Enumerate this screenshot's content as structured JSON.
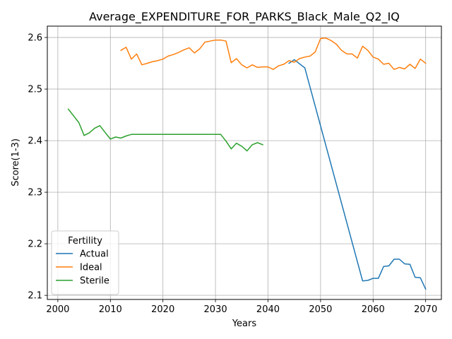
{
  "chart_data": {
    "type": "line",
    "title": "Average_EXPENDITURE_FOR_PARKS_Black_Male_Q2_IQ",
    "xlabel": "Years",
    "ylabel": "Score(1-3)",
    "xlim": [
      1998,
      2073
    ],
    "ylim": [
      2.092,
      2.622
    ],
    "xticks": [
      2000,
      2010,
      2020,
      2030,
      2040,
      2050,
      2060,
      2070
    ],
    "yticks": [
      2.1,
      2.2,
      2.3,
      2.4,
      2.5,
      2.6
    ],
    "xtick_labels": [
      "2000",
      "2010",
      "2020",
      "2030",
      "2040",
      "2050",
      "2060",
      "2070"
    ],
    "ytick_labels": [
      "2.1",
      "2.2",
      "2.3",
      "2.4",
      "2.5",
      "2.6"
    ],
    "grid": true,
    "legend": {
      "title": "Fertility",
      "placement": "lower-left"
    },
    "series": [
      {
        "name": "Actual",
        "color": "#1f77b4",
        "x": [
          2044,
          2045,
          2046,
          2047,
          2058,
          2059,
          2060,
          2061,
          2062,
          2063,
          2064,
          2065,
          2066,
          2067,
          2068,
          2069,
          2070
        ],
        "y": [
          2.55,
          2.557,
          2.549,
          2.541,
          2.128,
          2.129,
          2.133,
          2.133,
          2.156,
          2.157,
          2.17,
          2.17,
          2.161,
          2.16,
          2.135,
          2.134,
          2.112
        ]
      },
      {
        "name": "Ideal",
        "color": "#ff7f0e",
        "x": [
          2012,
          2013,
          2014,
          2015,
          2016,
          2017,
          2018,
          2019,
          2020,
          2021,
          2022,
          2023,
          2024,
          2025,
          2026,
          2027,
          2028,
          2029,
          2030,
          2031,
          2032,
          2033,
          2034,
          2035,
          2036,
          2037,
          2038,
          2039,
          2040,
          2041,
          2042,
          2043,
          2044,
          2045,
          2046,
          2047,
          2048,
          2049,
          2050,
          2051,
          2052,
          2053,
          2054,
          2055,
          2056,
          2057,
          2058,
          2059,
          2060,
          2061,
          2062,
          2063,
          2064,
          2065,
          2066,
          2067,
          2068,
          2069,
          2070
        ],
        "y": [
          2.575,
          2.581,
          2.558,
          2.568,
          2.547,
          2.55,
          2.553,
          2.555,
          2.558,
          2.564,
          2.567,
          2.571,
          2.576,
          2.58,
          2.57,
          2.578,
          2.591,
          2.593,
          2.595,
          2.595,
          2.593,
          2.551,
          2.559,
          2.547,
          2.541,
          2.547,
          2.542,
          2.543,
          2.543,
          2.538,
          2.545,
          2.548,
          2.555,
          2.552,
          2.559,
          2.562,
          2.564,
          2.572,
          2.598,
          2.599,
          2.594,
          2.587,
          2.575,
          2.568,
          2.568,
          2.56,
          2.583,
          2.575,
          2.562,
          2.558,
          2.548,
          2.55,
          2.538,
          2.542,
          2.539,
          2.548,
          2.54,
          2.558,
          2.55
        ]
      },
      {
        "name": "Sterile",
        "color": "#2ca02c",
        "x": [
          2002,
          2003,
          2004,
          2005,
          2006,
          2007,
          2008,
          2009,
          2010,
          2011,
          2012,
          2013,
          2014,
          2015,
          2016,
          2017,
          2018,
          2019,
          2020,
          2021,
          2022,
          2023,
          2024,
          2025,
          2026,
          2027,
          2028,
          2029,
          2030,
          2031,
          2032,
          2033,
          2034,
          2035,
          2036,
          2037,
          2038,
          2039
        ],
        "y": [
          2.461,
          2.448,
          2.435,
          2.41,
          2.415,
          2.424,
          2.429,
          2.416,
          2.403,
          2.407,
          2.405,
          2.409,
          2.412,
          2.412,
          2.412,
          2.412,
          2.412,
          2.412,
          2.412,
          2.412,
          2.412,
          2.412,
          2.412,
          2.412,
          2.412,
          2.412,
          2.412,
          2.412,
          2.412,
          2.412,
          2.399,
          2.384,
          2.395,
          2.389,
          2.38,
          2.392,
          2.396,
          2.392
        ]
      }
    ]
  }
}
